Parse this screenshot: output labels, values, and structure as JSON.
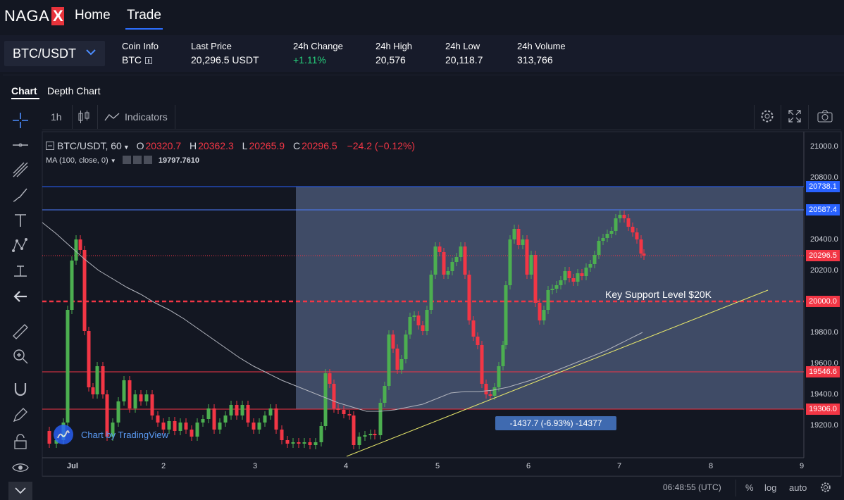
{
  "nav": {
    "brand": "NAGA",
    "brand_mark": "X",
    "home": "Home",
    "trade": "Trade"
  },
  "info": {
    "pair": "BTC/USDT",
    "coin_info_label": "Coin Info",
    "coin_info_value": "BTC",
    "last_price_label": "Last Price",
    "last_price_value": "20,296.5 USDT",
    "change_label": "24h Change",
    "change_value": "+1.11%",
    "high_label": "24h High",
    "high_value": "20,576",
    "low_label": "24h Low",
    "low_value": "20,118.7",
    "volume_label": "24h Volume",
    "volume_value": "313,766"
  },
  "tabs": {
    "chart": "Chart",
    "depth": "Depth Chart"
  },
  "toolbar": {
    "interval": "1h",
    "indicators": "Indicators"
  },
  "legend": {
    "symbol": "BTC/USDT, 60",
    "o_label": "O",
    "o_value": "20320.7",
    "h_label": "H",
    "h_value": "20362.3",
    "l_label": "L",
    "l_value": "20265.9",
    "c_label": "C",
    "c_value": "20296.5",
    "change": "−24.2 (−0.12%)",
    "ma_label": "MA (100, close, 0)",
    "ma_value": "19797.7610"
  },
  "watermark": "Chart by TradingView",
  "annotation": "Key Support Level $20K",
  "measure_label": "-1437.7 (-6.93%) -14377",
  "price_tags": {
    "t1": "20738.1",
    "t2": "20587.4",
    "t3": "20296.5",
    "t4": "20000.0",
    "t5": "19546.6",
    "t6": "19306.0"
  },
  "y_ticks": [
    "21000.0",
    "20800.0",
    "20400.0",
    "20200.0",
    "19800.0",
    "19600.0",
    "19400.0",
    "19200.0"
  ],
  "x_ticks": [
    "Jul",
    "2",
    "3",
    "4",
    "5",
    "6",
    "7",
    "8",
    "9"
  ],
  "bottom_bar": {
    "time": "06:48:55 (UTC)",
    "percent": "%",
    "log": "log",
    "auto": "auto"
  },
  "colors": {
    "up": "#26a69a",
    "down": "#f23645",
    "accent": "#2962ff",
    "green_text": "#26d07c"
  }
}
